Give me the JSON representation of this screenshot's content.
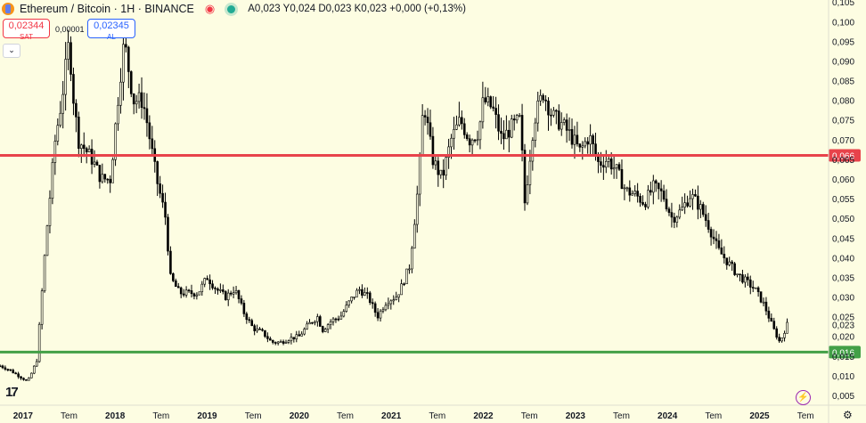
{
  "header": {
    "symbol": "Ethereum / Bitcoin · 1H · BINANCE",
    "ohlc": "A0,023 Y0,024 D0,023 K0,023 +0,000 (+0,13%)"
  },
  "trade": {
    "sell_price": "0,02344",
    "sell_label": "SAT",
    "spread": "0,00001",
    "buy_price": "0,02345",
    "buy_label": "AL"
  },
  "colors": {
    "background": "#fdfde2",
    "candles": "#000000",
    "resistance": "#e8434b",
    "support": "#43a047",
    "accent_buy": "#2962ff",
    "accent_sell": "#f23645"
  },
  "icons": [
    "eth-btc-logo",
    "alert-bell-icon",
    "live-status-icon",
    "collapse-chevron-icon",
    "tradingview-logo",
    "lightning-icon",
    "settings-gear-icon"
  ],
  "chart_data": {
    "type": "candlestick",
    "title": "Ethereum / Bitcoin · 1H · BINANCE",
    "y_ticks": [
      "0,105",
      "0,100",
      "0,095",
      "0,090",
      "0,085",
      "0,080",
      "0,075",
      "0,070",
      "0,065",
      "0,060",
      "0,055",
      "0,050",
      "0,045",
      "0,040",
      "0,035",
      "0,030",
      "0,025",
      "0,020",
      "0,015",
      "0,010",
      "0,005"
    ],
    "x_ticks": [
      "2017",
      "Tem",
      "2018",
      "Tem",
      "2019",
      "Tem",
      "2020",
      "Tem",
      "2021",
      "Tem",
      "2022",
      "Tem",
      "2023",
      "Tem",
      "2024",
      "Tem",
      "2025",
      "Tem"
    ],
    "ylim": [
      0.0025,
      0.1055
    ],
    "x_range": [
      2016.75,
      2025.75
    ],
    "series": [
      {
        "x": [
          2016.75,
          2016.85,
          2016.95,
          2017.05,
          2017.1,
          2017.15,
          2017.25,
          2017.35,
          2017.42,
          2017.5,
          2017.55,
          2017.6,
          2017.75,
          2017.85,
          2017.95,
          2018.05,
          2018.1,
          2018.2,
          2018.3,
          2018.35,
          2018.45,
          2018.55,
          2018.6,
          2018.7,
          2018.8,
          2018.9,
          2019.0,
          2019.1,
          2019.2,
          2019.3,
          2019.4,
          2019.5,
          2019.6,
          2019.7,
          2019.8,
          2019.9,
          2020.0,
          2020.1,
          2020.2,
          2020.25,
          2020.35,
          2020.45,
          2020.55,
          2020.65,
          2020.75,
          2020.85,
          2020.95,
          2021.05,
          2021.1,
          2021.2,
          2021.3,
          2021.35,
          2021.45,
          2021.55,
          2021.65,
          2021.75,
          2021.85,
          2021.95,
          2022.0,
          2022.1,
          2022.2,
          2022.3,
          2022.4,
          2022.45,
          2022.55,
          2022.65,
          2022.75,
          2022.85,
          2022.95,
          2023.05,
          2023.15,
          2023.25,
          2023.35,
          2023.45,
          2023.55,
          2023.65,
          2023.75,
          2023.85,
          2023.95,
          2024.05,
          2024.15,
          2024.25,
          2024.35,
          2024.45,
          2024.55,
          2024.65,
          2024.75,
          2024.85,
          2024.95,
          2025.05,
          2025.15,
          2025.22,
          2025.3
        ],
        "values": [
          0.0125,
          0.0115,
          0.01,
          0.0085,
          0.011,
          0.014,
          0.045,
          0.07,
          0.08,
          0.095,
          0.08,
          0.07,
          0.065,
          0.06,
          0.06,
          0.085,
          0.095,
          0.08,
          0.08,
          0.074,
          0.06,
          0.05,
          0.035,
          0.031,
          0.031,
          0.031,
          0.035,
          0.032,
          0.03,
          0.032,
          0.026,
          0.022,
          0.021,
          0.0185,
          0.0185,
          0.0195,
          0.02,
          0.023,
          0.025,
          0.0215,
          0.024,
          0.025,
          0.029,
          0.032,
          0.03,
          0.025,
          0.029,
          0.03,
          0.032,
          0.038,
          0.06,
          0.08,
          0.065,
          0.06,
          0.07,
          0.075,
          0.07,
          0.072,
          0.08,
          0.078,
          0.07,
          0.073,
          0.075,
          0.054,
          0.075,
          0.082,
          0.076,
          0.074,
          0.071,
          0.067,
          0.071,
          0.064,
          0.065,
          0.062,
          0.057,
          0.056,
          0.054,
          0.058,
          0.056,
          0.05,
          0.052,
          0.056,
          0.053,
          0.048,
          0.042,
          0.039,
          0.036,
          0.034,
          0.032,
          0.028,
          0.022,
          0.0185,
          0.023
        ]
      }
    ],
    "annotations": [
      {
        "label": "0,066",
        "value": 0.066,
        "kind": "resistance-line"
      },
      {
        "label": "0,016",
        "value": 0.016,
        "kind": "support-line"
      },
      {
        "label": "0,023",
        "value": 0.023,
        "kind": "last-price"
      }
    ]
  }
}
